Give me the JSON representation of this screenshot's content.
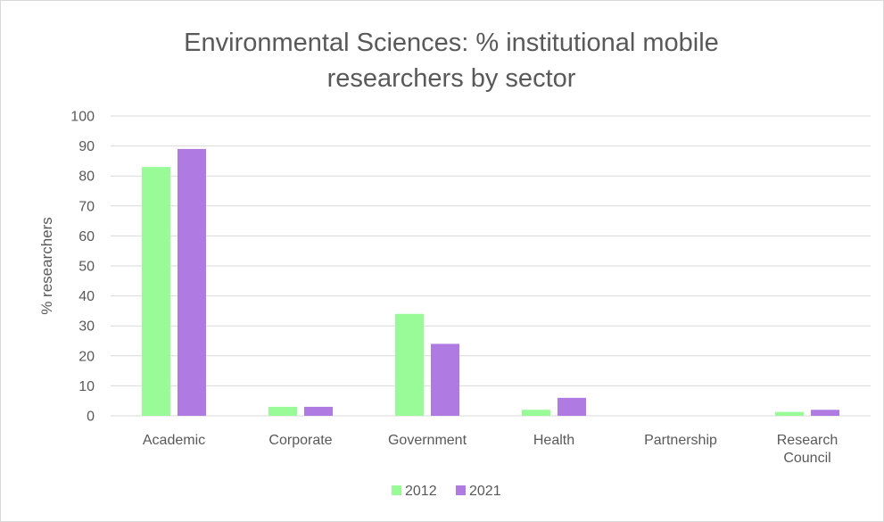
{
  "chart_data": {
    "type": "bar",
    "title_lines": [
      "Environmental Sciences: % institutional mobile",
      "researchers by sector"
    ],
    "ylabel": "% researchers",
    "xlabel": "",
    "categories": [
      [
        "Academic"
      ],
      [
        "Corporate"
      ],
      [
        "Government"
      ],
      [
        "Health"
      ],
      [
        "Partnership"
      ],
      [
        "Research",
        "Council"
      ]
    ],
    "series": [
      {
        "name": "2012",
        "color": "#98fb98",
        "values": [
          83,
          3,
          34,
          2,
          0,
          1.3
        ]
      },
      {
        "name": "2021",
        "color": "#b07ae3",
        "values": [
          89,
          3,
          24,
          6,
          0,
          2
        ]
      }
    ],
    "ylim": [
      0,
      100
    ],
    "yticks": [
      0,
      10,
      20,
      30,
      40,
      50,
      60,
      70,
      80,
      90,
      100
    ],
    "grid": true,
    "gridline_color": "#d9d9d9",
    "legend_position": "bottom"
  }
}
